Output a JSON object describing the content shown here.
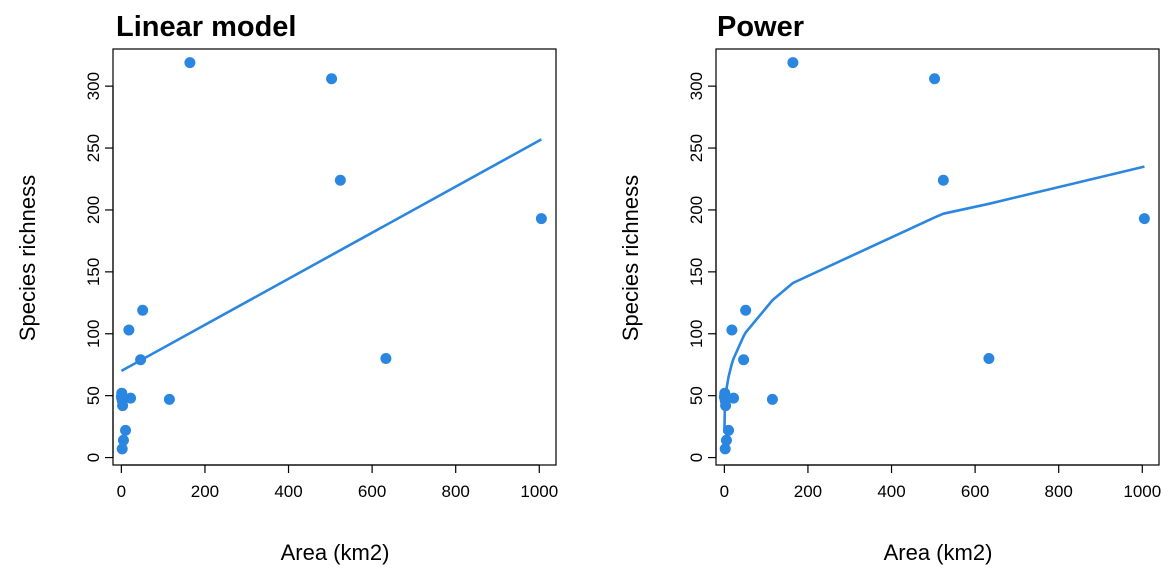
{
  "series_color": "#2b86e0",
  "chart_data": [
    {
      "type": "scatter",
      "title": "Linear model",
      "xlabel": "Area (km2)",
      "ylabel": "Species richness",
      "xlim": [
        -20,
        1040
      ],
      "ylim": [
        -6,
        330
      ],
      "xticks": [
        0,
        200,
        400,
        600,
        800,
        1000
      ],
      "yticks": [
        0,
        50,
        100,
        150,
        200,
        250,
        300
      ],
      "grid": false,
      "points": [
        {
          "x": 164,
          "y": 319
        },
        {
          "x": 503,
          "y": 306
        },
        {
          "x": 524,
          "y": 224
        },
        {
          "x": 1005,
          "y": 193
        },
        {
          "x": 51,
          "y": 119
        },
        {
          "x": 18,
          "y": 103
        },
        {
          "x": 46,
          "y": 79
        },
        {
          "x": 633,
          "y": 80
        },
        {
          "x": 115,
          "y": 47
        },
        {
          "x": 22,
          "y": 48
        },
        {
          "x": 1,
          "y": 52
        },
        {
          "x": 0,
          "y": 49
        },
        {
          "x": 2,
          "y": 46
        },
        {
          "x": 3,
          "y": 42
        },
        {
          "x": 10,
          "y": 22
        },
        {
          "x": 5,
          "y": 14
        },
        {
          "x": 2,
          "y": 7
        }
      ],
      "fit": {
        "model": "linear",
        "x": [
          0,
          1005
        ],
        "y": [
          70,
          257
        ]
      }
    },
    {
      "type": "scatter",
      "title": "Power",
      "xlabel": "Area (km2)",
      "ylabel": "Species richness",
      "xlim": [
        -20,
        1040
      ],
      "ylim": [
        -6,
        330
      ],
      "xticks": [
        0,
        200,
        400,
        600,
        800,
        1000
      ],
      "yticks": [
        0,
        50,
        100,
        150,
        200,
        250,
        300
      ],
      "grid": false,
      "points": [
        {
          "x": 164,
          "y": 319
        },
        {
          "x": 503,
          "y": 306
        },
        {
          "x": 524,
          "y": 224
        },
        {
          "x": 1005,
          "y": 193
        },
        {
          "x": 51,
          "y": 119
        },
        {
          "x": 18,
          "y": 103
        },
        {
          "x": 46,
          "y": 79
        },
        {
          "x": 633,
          "y": 80
        },
        {
          "x": 115,
          "y": 47
        },
        {
          "x": 22,
          "y": 48
        },
        {
          "x": 1,
          "y": 52
        },
        {
          "x": 0,
          "y": 49
        },
        {
          "x": 2,
          "y": 46
        },
        {
          "x": 3,
          "y": 42
        },
        {
          "x": 10,
          "y": 22
        },
        {
          "x": 5,
          "y": 14
        },
        {
          "x": 2,
          "y": 7
        }
      ],
      "fit": {
        "model": "power",
        "x": [
          0,
          1,
          2,
          3,
          5,
          10,
          18,
          22,
          46,
          51,
          115,
          164,
          503,
          524,
          633,
          1005
        ],
        "y": [
          20,
          38,
          44,
          48,
          55,
          65,
          76,
          80,
          98,
          101,
          127,
          141,
          194,
          197,
          205,
          235
        ]
      }
    }
  ]
}
